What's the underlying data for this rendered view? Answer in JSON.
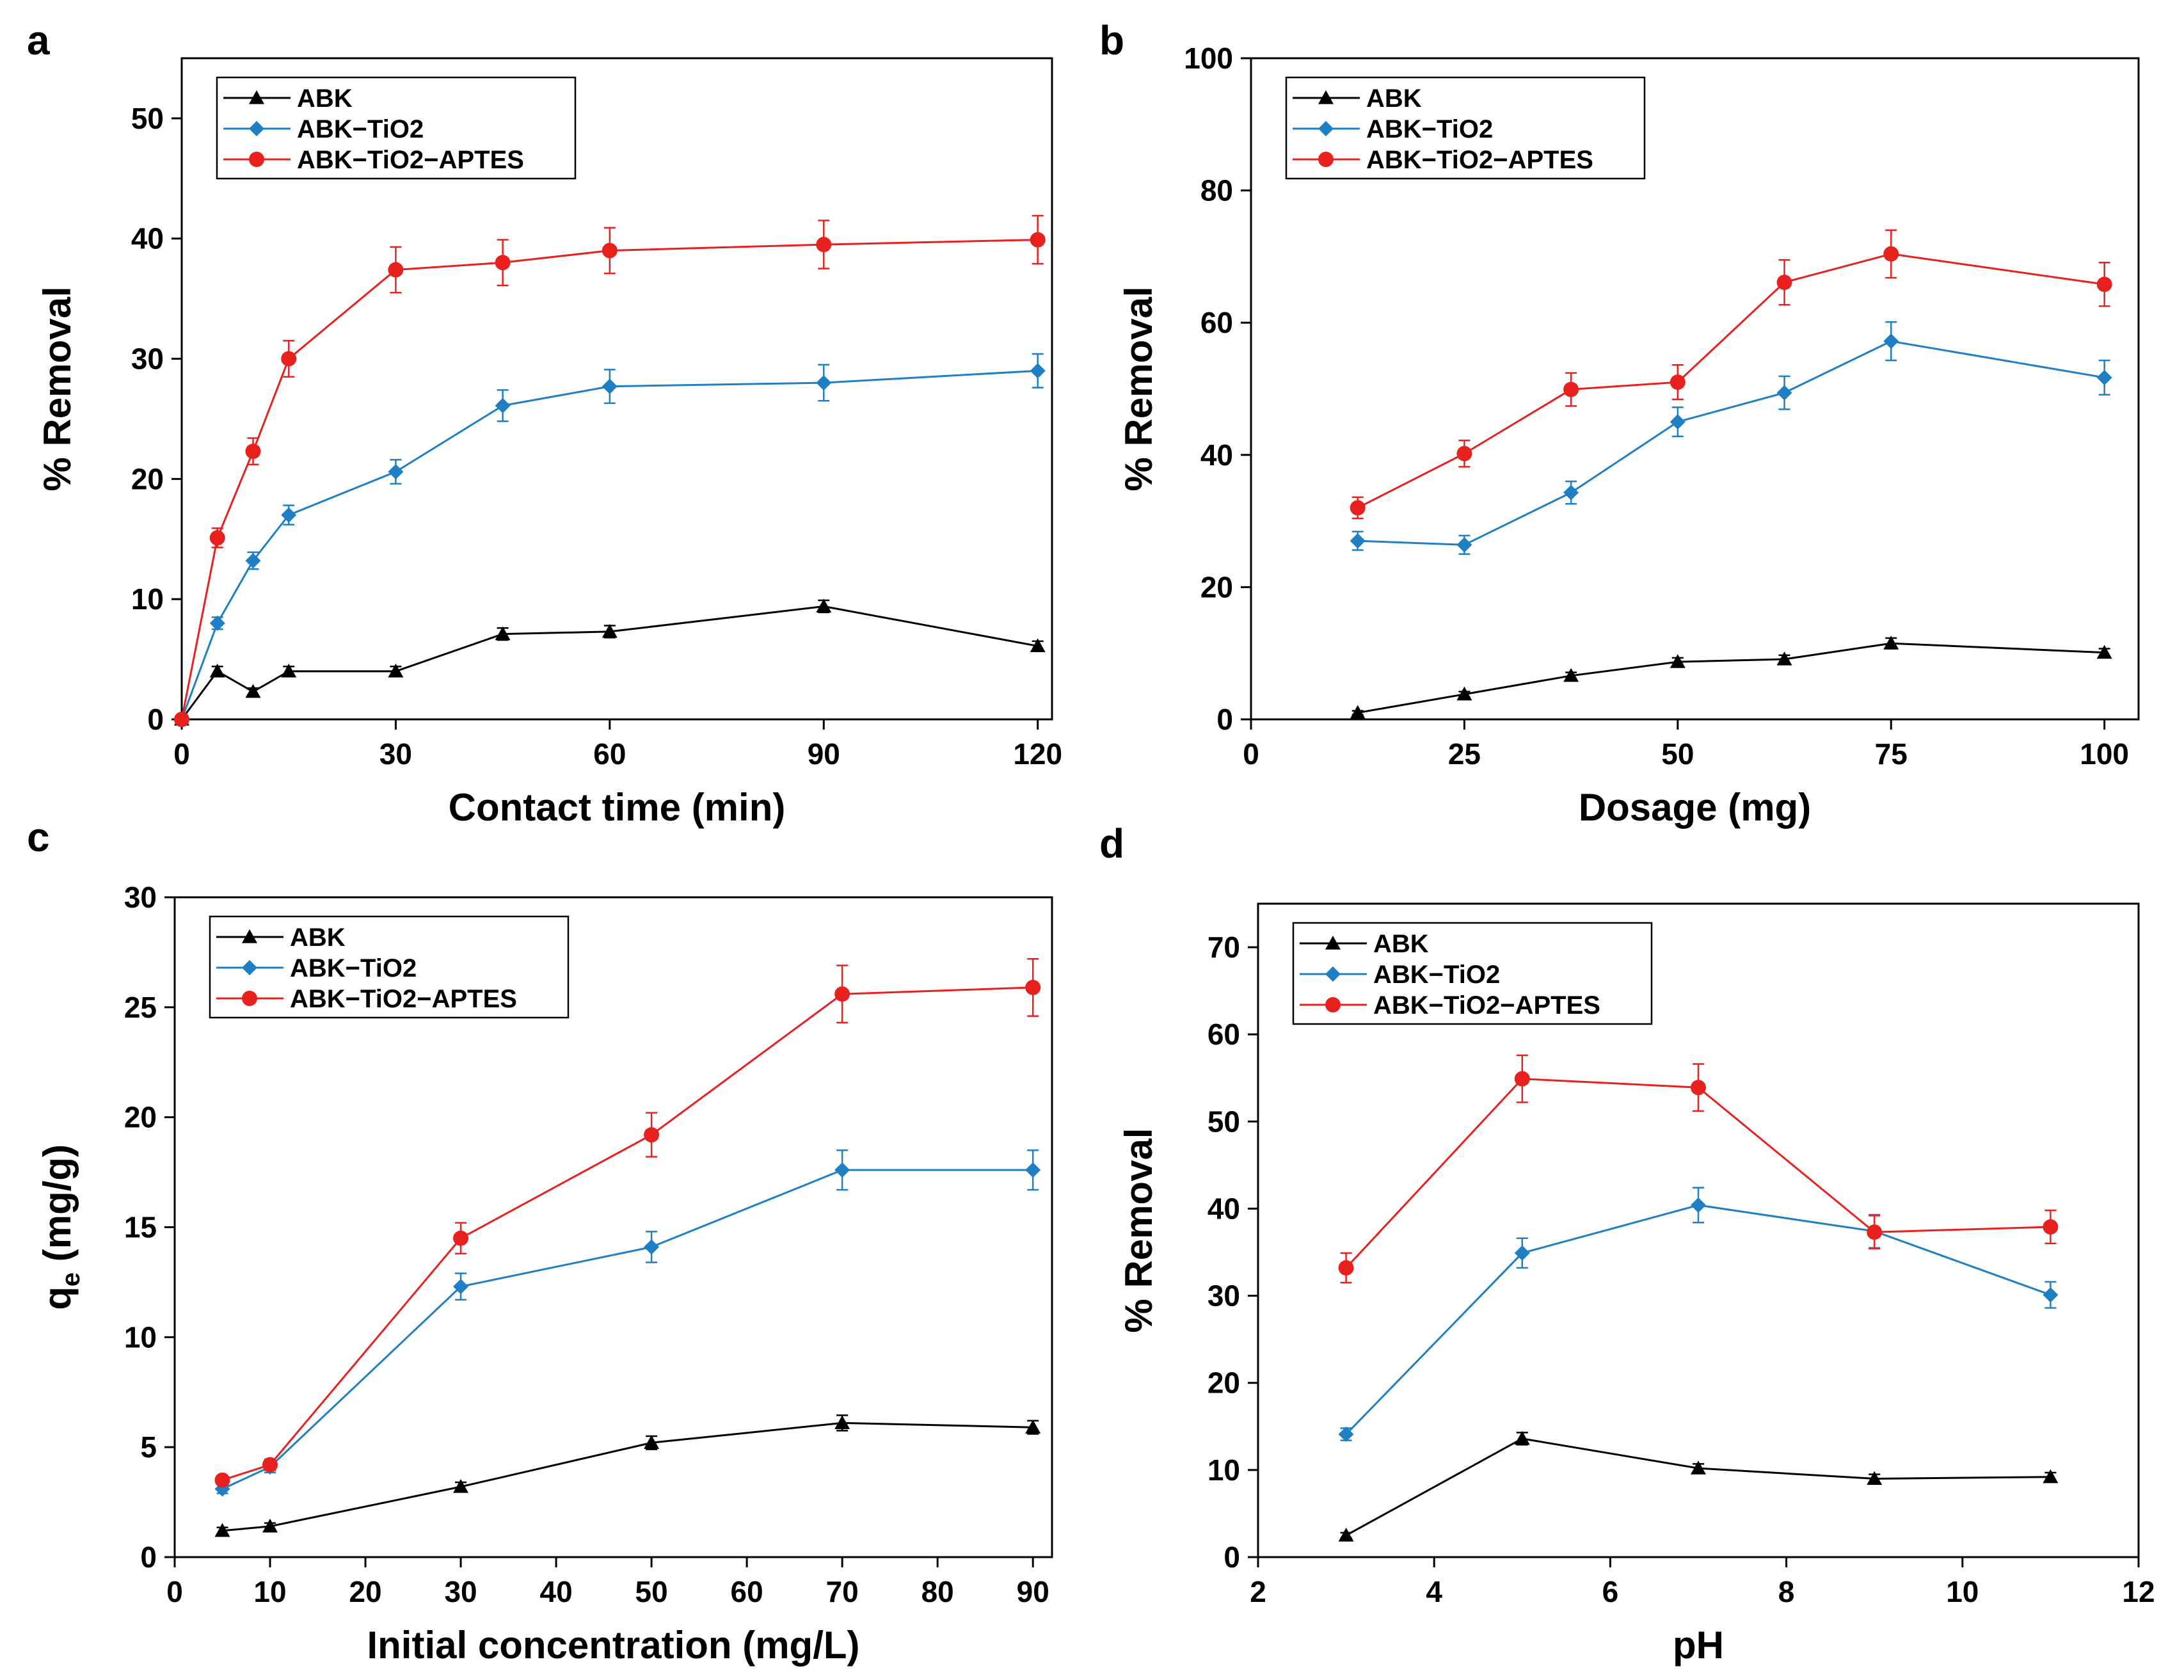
{
  "chart_data": [
    {
      "panel": "a",
      "type": "line",
      "title": "",
      "xlabel": "Contact time (min)",
      "ylabel": "% Removal",
      "xlim": [
        0,
        122
      ],
      "ylim": [
        0,
        55
      ],
      "xticks": [
        0,
        30,
        60,
        90,
        120
      ],
      "yticks": [
        0,
        10,
        20,
        30,
        40,
        50
      ],
      "x": [
        0,
        5,
        10,
        15,
        30,
        45,
        60,
        90,
        120
      ],
      "legend": "top-left",
      "series": [
        {
          "name": "ABK",
          "color": "#000000",
          "marker": "triangle",
          "values": [
            0,
            4.0,
            2.3,
            4.0,
            4.0,
            7.1,
            7.3,
            9.4,
            6.1
          ],
          "errors": [
            0,
            0.4,
            0.3,
            0.4,
            0.4,
            0.5,
            0.5,
            0.5,
            0.4
          ]
        },
        {
          "name": "ABK−TiO2",
          "color": "#1f7fc4",
          "marker": "diamond",
          "values": [
            0,
            8.0,
            13.2,
            17.0,
            20.6,
            26.1,
            27.7,
            28.0,
            29.0
          ],
          "errors": [
            0,
            0.5,
            0.7,
            0.8,
            1.0,
            1.3,
            1.4,
            1.5,
            1.4
          ]
        },
        {
          "name": "ABK−TiO2−APTES",
          "color": "#e8211f",
          "marker": "circle",
          "values": [
            0,
            15.1,
            22.3,
            30.0,
            37.4,
            38.0,
            39.0,
            39.5,
            39.9
          ],
          "errors": [
            0,
            0.8,
            1.1,
            1.5,
            1.9,
            1.9,
            1.9,
            2.0,
            2.0
          ]
        }
      ]
    },
    {
      "panel": "b",
      "type": "line",
      "title": "",
      "xlabel": "Dosage (mg)",
      "ylabel": "% Removal",
      "xlim": [
        0,
        104
      ],
      "ylim": [
        0,
        100
      ],
      "xticks": [
        0,
        25,
        50,
        75,
        100
      ],
      "yticks": [
        0,
        20,
        40,
        60,
        80,
        100
      ],
      "x": [
        12.5,
        25,
        37.5,
        50,
        62.5,
        75,
        100
      ],
      "legend": "top-left",
      "series": [
        {
          "name": "ABK",
          "color": "#000000",
          "marker": "triangle",
          "values": [
            1.0,
            3.8,
            6.6,
            8.7,
            9.1,
            11.5,
            10.1
          ],
          "errors": [
            0.3,
            0.4,
            0.5,
            0.6,
            0.6,
            0.8,
            0.6
          ]
        },
        {
          "name": "ABK−TiO2",
          "color": "#1f7fc4",
          "marker": "diamond",
          "values": [
            27.0,
            26.4,
            34.3,
            45.0,
            49.4,
            57.2,
            51.7
          ],
          "errors": [
            1.4,
            1.4,
            1.7,
            2.2,
            2.5,
            2.9,
            2.6
          ]
        },
        {
          "name": "ABK−TiO2−APTES",
          "color": "#e8211f",
          "marker": "circle",
          "values": [
            32.0,
            40.2,
            49.9,
            51.0,
            66.1,
            70.4,
            65.8
          ],
          "errors": [
            1.6,
            2.0,
            2.5,
            2.6,
            3.4,
            3.6,
            3.3
          ]
        }
      ]
    },
    {
      "panel": "c",
      "type": "line",
      "title": "",
      "xlabel": "Initial concentration (mg/L)",
      "ylabel_main": "q",
      "ylabel_sub": "e",
      "ylabel_rest": " (mg/g)",
      "xlim": [
        0,
        92
      ],
      "ylim": [
        0,
        30
      ],
      "xticks": [
        0,
        10,
        20,
        30,
        40,
        50,
        60,
        70,
        80,
        90
      ],
      "yticks": [
        0,
        5,
        10,
        15,
        20,
        25,
        30
      ],
      "x": [
        5,
        10,
        30,
        50,
        70,
        90
      ],
      "legend": "top-left",
      "series": [
        {
          "name": "ABK",
          "color": "#000000",
          "marker": "triangle",
          "values": [
            1.2,
            1.4,
            3.2,
            5.2,
            6.1,
            5.9
          ],
          "errors": [
            0.15,
            0.15,
            0.2,
            0.3,
            0.35,
            0.3
          ]
        },
        {
          "name": "ABK−TiO2",
          "color": "#1f7fc4",
          "marker": "diamond",
          "values": [
            3.1,
            4.1,
            12.3,
            14.1,
            17.6,
            17.6
          ],
          "errors": [
            0.2,
            0.25,
            0.6,
            0.7,
            0.9,
            0.9
          ]
        },
        {
          "name": "ABK−TiO2−APTES",
          "color": "#e8211f",
          "marker": "circle",
          "values": [
            3.5,
            4.2,
            14.5,
            19.2,
            25.6,
            25.9
          ],
          "errors": [
            0.2,
            0.25,
            0.7,
            1.0,
            1.3,
            1.3
          ]
        }
      ]
    },
    {
      "panel": "d",
      "type": "line",
      "title": "",
      "xlabel": "pH",
      "ylabel": "% Removal",
      "xlim": [
        2,
        12
      ],
      "ylim": [
        0,
        75
      ],
      "xticks": [
        2,
        4,
        6,
        8,
        10,
        12
      ],
      "yticks": [
        0,
        10,
        20,
        30,
        40,
        50,
        60,
        70
      ],
      "x": [
        3,
        5,
        7,
        9,
        11
      ],
      "legend": "top-left",
      "series": [
        {
          "name": "ABK",
          "color": "#000000",
          "marker": "triangle",
          "values": [
            2.5,
            13.6,
            10.2,
            9.0,
            9.2
          ],
          "errors": [
            0.3,
            0.7,
            0.5,
            0.5,
            0.5
          ]
        },
        {
          "name": "ABK−TiO2",
          "color": "#1f7fc4",
          "marker": "diamond",
          "values": [
            14.1,
            34.9,
            40.4,
            37.4,
            30.1
          ],
          "errors": [
            0.7,
            1.7,
            2.0,
            1.9,
            1.5
          ]
        },
        {
          "name": "ABK−TiO2−APTES",
          "color": "#e8211f",
          "marker": "circle",
          "values": [
            33.2,
            54.9,
            53.9,
            37.3,
            37.9
          ],
          "errors": [
            1.7,
            2.7,
            2.7,
            1.9,
            1.9
          ]
        }
      ]
    }
  ]
}
